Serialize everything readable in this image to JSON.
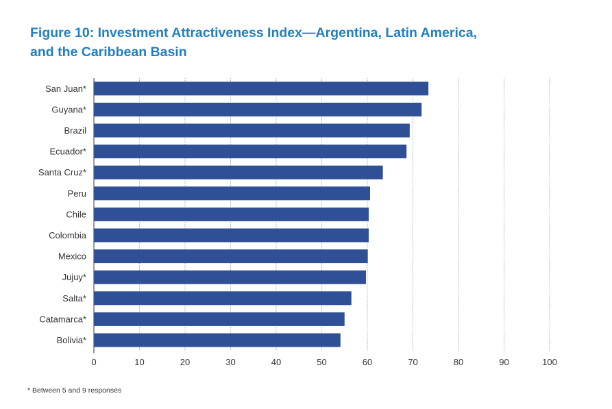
{
  "title_line1": "Figure 10: Investment Attractiveness Index—Argentina, Latin America,",
  "title_line2": "and the Caribbean Basin",
  "footnote": "* Between 5 and 9 responses",
  "colors": {
    "title": "#1f7fc2",
    "bar": "#2f4f96",
    "axis": "#333333",
    "grid": "#9a9a9a"
  },
  "chart_data": {
    "type": "bar",
    "orientation": "horizontal",
    "title": "Figure 10: Investment Attractiveness Index—Argentina, Latin America, and the Caribbean Basin",
    "xlabel": "",
    "ylabel": "",
    "xlim": [
      0,
      100
    ],
    "xticks": [
      0,
      10,
      20,
      30,
      40,
      50,
      60,
      70,
      80,
      90,
      100
    ],
    "grid": true,
    "categories": [
      "San Juan*",
      "Guyana*",
      "Brazil",
      "Ecuador*",
      "Santa Cruz*",
      "Peru",
      "Chile",
      "Colombia",
      "Mexico",
      "Jujuy*",
      "Salta*",
      "Catamarca*",
      "Bolivia*"
    ],
    "values": [
      73.4,
      71.9,
      69.3,
      68.6,
      63.4,
      60.6,
      60.3,
      60.3,
      60.1,
      59.7,
      56.5,
      55.0,
      54.1
    ]
  }
}
